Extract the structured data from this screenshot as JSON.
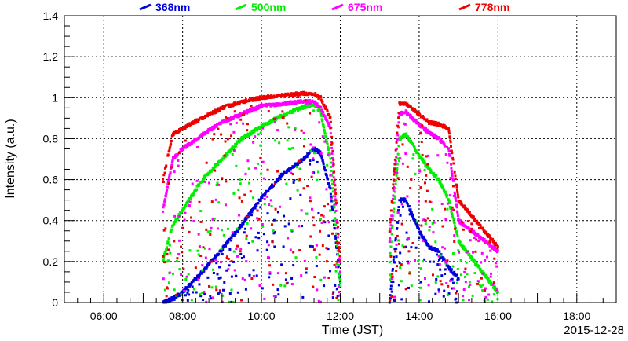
{
  "chart_data": {
    "type": "scatter",
    "title": "",
    "xlabel": "Time (JST)",
    "ylabel": "Intensity (a.u.)",
    "date_label": "2015-12-28",
    "xlim": [
      "05:00",
      "19:00"
    ],
    "ylim": [
      0,
      1.4
    ],
    "x_ticks": [
      "06:00",
      "08:00",
      "10:00",
      "12:00",
      "14:00",
      "16:00",
      "18:00"
    ],
    "y_ticks": [
      "0",
      "0.2",
      "0.4",
      "0.6",
      "0.8",
      "1",
      "1.2",
      "1.4"
    ],
    "grid": true,
    "legend_position": "top",
    "series": [
      {
        "name": "368nm",
        "color": "#0000dd",
        "envelope": [
          [
            "07:30",
            0.0
          ],
          [
            "07:45",
            0.02
          ],
          [
            "08:00",
            0.05
          ],
          [
            "08:30",
            0.15
          ],
          [
            "09:00",
            0.26
          ],
          [
            "09:30",
            0.38
          ],
          [
            "10:00",
            0.51
          ],
          [
            "10:30",
            0.62
          ],
          [
            "11:00",
            0.69
          ],
          [
            "11:20",
            0.75
          ],
          [
            "11:30",
            0.73
          ],
          [
            "11:45",
            0.55
          ],
          [
            "12:00",
            0.1
          ],
          [
            "13:15",
            0.0
          ],
          [
            "13:30",
            0.5
          ],
          [
            "13:40",
            0.5
          ],
          [
            "14:00",
            0.35
          ],
          [
            "14:15",
            0.27
          ],
          [
            "14:30",
            0.25
          ],
          [
            "14:45",
            0.17
          ],
          [
            "15:00",
            0.12
          ]
        ]
      },
      {
        "name": "500nm",
        "color": "#00ee00",
        "envelope": [
          [
            "07:30",
            0.2
          ],
          [
            "07:45",
            0.38
          ],
          [
            "08:00",
            0.45
          ],
          [
            "08:30",
            0.6
          ],
          [
            "09:00",
            0.7
          ],
          [
            "09:30",
            0.8
          ],
          [
            "10:00",
            0.86
          ],
          [
            "10:30",
            0.91
          ],
          [
            "11:00",
            0.95
          ],
          [
            "11:20",
            0.97
          ],
          [
            "11:30",
            0.93
          ],
          [
            "11:45",
            0.7
          ],
          [
            "12:00",
            0.1
          ],
          [
            "13:15",
            0.2
          ],
          [
            "13:30",
            0.8
          ],
          [
            "13:40",
            0.82
          ],
          [
            "14:00",
            0.72
          ],
          [
            "14:15",
            0.65
          ],
          [
            "14:30",
            0.6
          ],
          [
            "14:45",
            0.5
          ],
          [
            "15:00",
            0.3
          ],
          [
            "16:00",
            0.05
          ]
        ]
      },
      {
        "name": "675nm",
        "color": "#ff00ff",
        "envelope": [
          [
            "07:30",
            0.45
          ],
          [
            "07:45",
            0.7
          ],
          [
            "08:00",
            0.75
          ],
          [
            "08:30",
            0.82
          ],
          [
            "09:00",
            0.88
          ],
          [
            "09:30",
            0.92
          ],
          [
            "10:00",
            0.96
          ],
          [
            "10:30",
            0.97
          ],
          [
            "11:00",
            0.98
          ],
          [
            "11:20",
            0.98
          ],
          [
            "11:30",
            0.95
          ],
          [
            "11:45",
            0.85
          ],
          [
            "12:00",
            0.15
          ],
          [
            "13:15",
            0.3
          ],
          [
            "13:30",
            0.92
          ],
          [
            "13:40",
            0.93
          ],
          [
            "14:00",
            0.87
          ],
          [
            "14:15",
            0.83
          ],
          [
            "14:30",
            0.8
          ],
          [
            "14:45",
            0.75
          ],
          [
            "15:00",
            0.4
          ],
          [
            "16:00",
            0.25
          ]
        ]
      },
      {
        "name": "778nm",
        "color": "#ee0000",
        "envelope": [
          [
            "07:30",
            0.6
          ],
          [
            "07:45",
            0.82
          ],
          [
            "08:00",
            0.85
          ],
          [
            "08:30",
            0.9
          ],
          [
            "09:00",
            0.95
          ],
          [
            "09:30",
            0.98
          ],
          [
            "10:00",
            1.0
          ],
          [
            "10:30",
            1.01
          ],
          [
            "11:00",
            1.02
          ],
          [
            "11:20",
            1.02
          ],
          [
            "11:30",
            1.0
          ],
          [
            "11:45",
            0.9
          ],
          [
            "12:00",
            0.2
          ],
          [
            "13:15",
            0.35
          ],
          [
            "13:30",
            0.97
          ],
          [
            "13:40",
            0.97
          ],
          [
            "14:00",
            0.92
          ],
          [
            "14:15",
            0.88
          ],
          [
            "14:30",
            0.87
          ],
          [
            "14:45",
            0.85
          ],
          [
            "15:00",
            0.5
          ],
          [
            "16:00",
            0.27
          ]
        ]
      }
    ]
  }
}
